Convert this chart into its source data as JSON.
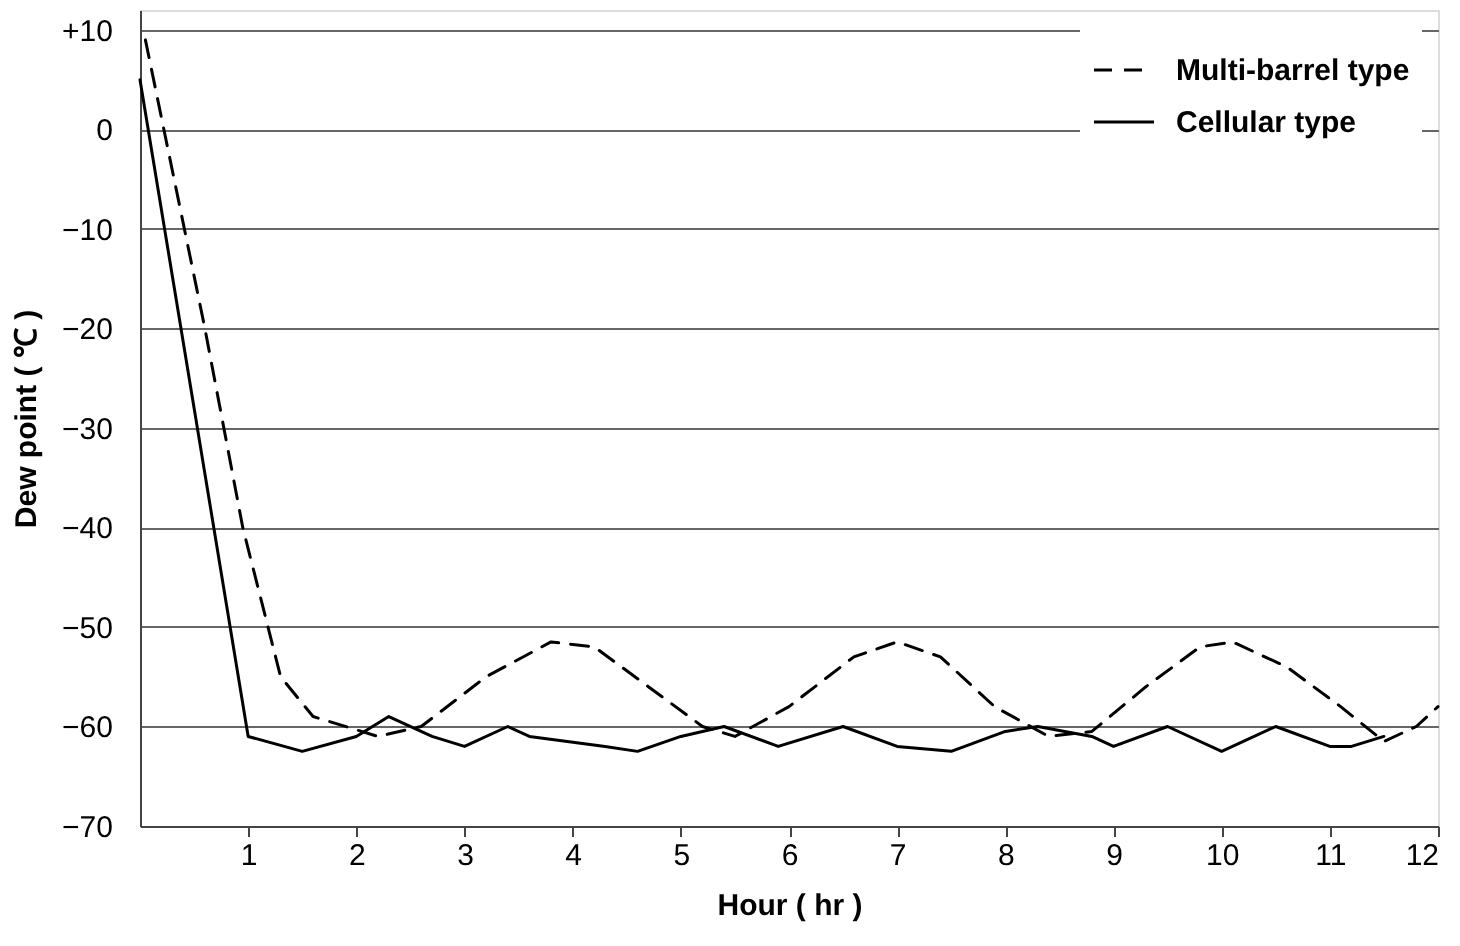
{
  "chart_data": {
    "type": "line",
    "xlabel": "Hour ( hr )",
    "ylabel": "Dew point ( ℃ )",
    "xlim": [
      0,
      12
    ],
    "xticks": [
      1,
      2,
      3,
      4,
      5,
      6,
      7,
      8,
      9,
      10,
      11,
      12
    ],
    "ylim": [
      -70,
      12
    ],
    "yticks": [
      {
        "value": 10,
        "label": "+10"
      },
      0,
      -10,
      -20,
      -30,
      -40,
      -50,
      -60,
      -70
    ],
    "grid": "y",
    "legend": "top right",
    "series": [
      {
        "name": "Multi-barrel type",
        "color": "#000000",
        "line_style": "dashed",
        "x": [
          0.05,
          0.6,
          0.95,
          1.3,
          1.6,
          2.2,
          2.6,
          3.2,
          3.8,
          4.2,
          4.7,
          5.2,
          5.5,
          6,
          6.6,
          7,
          7.4,
          7.9,
          8.4,
          8.8,
          9.3,
          9.8,
          10.1,
          10.6,
          11.1,
          11.5,
          11.8,
          12
        ],
        "values": [
          9,
          -20,
          -40,
          -55,
          -59,
          -61,
          -60,
          -55,
          -51.5,
          -52,
          -56,
          -60,
          -61,
          -58,
          -53,
          -51.5,
          -53,
          -58,
          -61,
          -60.5,
          -56,
          -52,
          -51.5,
          -54,
          -58,
          -61.5,
          -60,
          -58
        ]
      },
      {
        "name": "Cellular type",
        "color": "#000000",
        "line_style": "solid",
        "x": [
          0,
          1,
          1.5,
          2,
          2.3,
          2.7,
          3,
          3.4,
          3.6,
          4.3,
          4.6,
          5,
          5.4,
          5.9,
          6.5,
          7,
          7.5,
          8,
          8.3,
          8.8,
          9,
          9.5,
          10,
          10.5,
          11,
          11.2,
          11.5
        ],
        "values": [
          5,
          -61,
          -62.5,
          -61,
          -59,
          -61,
          -62,
          -60,
          -61,
          -62,
          -62.5,
          -61,
          -60,
          -62,
          -60,
          -62,
          -62.5,
          -60.5,
          -60,
          -61,
          -62,
          -60,
          -62.5,
          -60,
          -62,
          -62,
          -61
        ]
      }
    ]
  }
}
